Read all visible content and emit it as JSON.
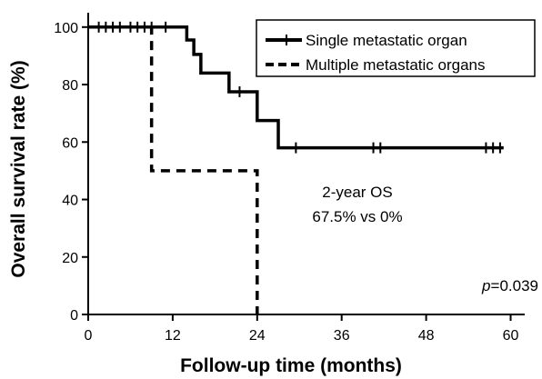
{
  "chart_data": {
    "type": "line",
    "xlabel": "Follow-up time (months)",
    "ylabel": "Overall survival rate (%)",
    "xlim": [
      0,
      62
    ],
    "ylim": [
      0,
      105
    ],
    "x_ticks": [
      "0",
      "12",
      "24",
      "36",
      "48",
      "60"
    ],
    "y_ticks": [
      "0",
      "20",
      "40",
      "60",
      "80",
      "100"
    ],
    "legend_position": "top-right",
    "series": [
      {
        "name": "Single metastatic organ",
        "style": "solid",
        "color": "#000000",
        "steps": [
          [
            0,
            100
          ],
          [
            13,
            100
          ],
          [
            14,
            95.5
          ],
          [
            15,
            90.5
          ],
          [
            16,
            84
          ],
          [
            20,
            77.5
          ],
          [
            24,
            67.5
          ],
          [
            27,
            58
          ],
          [
            59,
            58
          ]
        ],
        "censored": [
          [
            1.5,
            100
          ],
          [
            2.5,
            100
          ],
          [
            3.5,
            100
          ],
          [
            4.5,
            100
          ],
          [
            6,
            100
          ],
          [
            7,
            100
          ],
          [
            8,
            100
          ],
          [
            9,
            100
          ],
          [
            11,
            100
          ],
          [
            21.5,
            77.5
          ],
          [
            29.5,
            58
          ],
          [
            40.5,
            58
          ],
          [
            41.5,
            58
          ],
          [
            56.5,
            58
          ],
          [
            57.5,
            58
          ],
          [
            58.5,
            58
          ]
        ]
      },
      {
        "name": "Multiple metastatic organs",
        "style": "dashed",
        "color": "#000000",
        "steps": [
          [
            0,
            100
          ],
          [
            9,
            100
          ],
          [
            9,
            50
          ],
          [
            24,
            50
          ],
          [
            24,
            0
          ]
        ],
        "censored": []
      }
    ],
    "annotations": {
      "os_line1": "2-year OS",
      "os_line2": "67.5% vs 0%",
      "p_label": "p",
      "p_value": "=0.039"
    }
  }
}
